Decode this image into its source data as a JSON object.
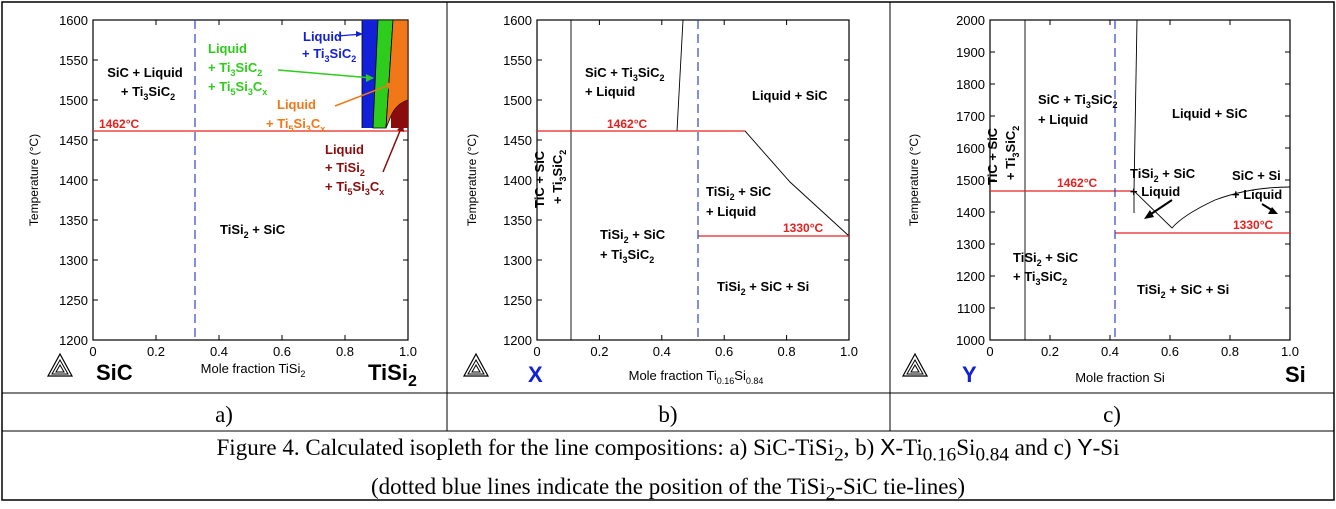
{
  "colors": {
    "red": "#e8201e",
    "blue": "#1220d8",
    "green": "#2ecc1c",
    "orange": "#f07818",
    "darkred": "#8a0c0c",
    "dash": "#3344cc"
  },
  "chart_data": [
    {
      "type": "phase-diagram",
      "panel_label": "a)",
      "ylabel": "Temperature (°C)",
      "xlabel": "Mole fraction TiSi₂",
      "left_endmember": "SiC",
      "right_endmember": "TiSi₂",
      "xlim": [
        0,
        1
      ],
      "ylim": [
        1200,
        1600
      ],
      "xticks": [
        "0",
        "0.2",
        "0.4",
        "0.6",
        "0.8",
        "1.0"
      ],
      "yticks": [
        "1200",
        "1250",
        "1300",
        "1350",
        "1400",
        "1450",
        "1500",
        "1550",
        "1600"
      ],
      "isotherms": [
        {
          "T": 1462,
          "label": "1462°C"
        }
      ],
      "tie_line_x": 0.325,
      "regions": [
        {
          "label": "SiC + Liquid\n+ Ti₃SiC₂",
          "color": "#000000"
        },
        {
          "label": "TiSi₂ + SiC",
          "color": "#000000"
        },
        {
          "label": "Liquid\n+ Ti₃SiC₂",
          "color": "#1220d8"
        },
        {
          "label": "Liquid\n+ Ti₃SiC₂\n+ Ti₅Si₃Cₓ",
          "color": "#2ecc1c"
        },
        {
          "label": "Liquid\n+ Ti₅Si₃Cₓ",
          "color": "#f07818"
        },
        {
          "label": "Liquid\n+ TiSi₂\n+ Ti₅Si₃Cₓ",
          "color": "#8a0c0c"
        }
      ]
    },
    {
      "type": "phase-diagram",
      "panel_label": "b)",
      "ylabel": "Temperature (°C)",
      "xlabel": "Mole fraction Ti0.16Si0.84",
      "left_endmember": "X",
      "right_endmember": "",
      "xlim": [
        0,
        1
      ],
      "ylim": [
        1200,
        1600
      ],
      "xticks": [
        "0",
        "0.2",
        "0.4",
        "0.6",
        "0.8",
        "1.0"
      ],
      "yticks": [
        "1200",
        "1250",
        "1300",
        "1350",
        "1400",
        "1450",
        "1500",
        "1550",
        "1600"
      ],
      "isotherms": [
        {
          "T": 1462,
          "label": "1462°C"
        },
        {
          "T": 1330,
          "label": "1330°C"
        }
      ],
      "tie_line_x": 0.52,
      "regions": [
        {
          "label": "SiC + Ti₃SiC₂\n+ Liquid"
        },
        {
          "label": "Liquid + SiC"
        },
        {
          "label": "TiC + SiC\n+ Ti₃SiC₂"
        },
        {
          "label": "TiSi₂ + SiC\n+ Liquid"
        },
        {
          "label": "TiSi₂ + SiC\n+ Ti₃SiC₂"
        },
        {
          "label": "TiSi₂ + SiC + Si"
        }
      ]
    },
    {
      "type": "phase-diagram",
      "panel_label": "c)",
      "ylabel": "Temperature (°C)",
      "xlabel": "Mole fraction Si",
      "left_endmember": "Y",
      "right_endmember": "Si",
      "xlim": [
        0,
        1
      ],
      "ylim": [
        1000,
        2000
      ],
      "xticks": [
        "0",
        "0.2",
        "0.4",
        "0.6",
        "0.8",
        "1.0"
      ],
      "yticks": [
        "1000",
        "1100",
        "1200",
        "1300",
        "1400",
        "1500",
        "1600",
        "1700",
        "1800",
        "1900",
        "2000"
      ],
      "isotherms": [
        {
          "T": 1462,
          "label": "1462°C"
        },
        {
          "T": 1330,
          "label": "1330°C"
        }
      ],
      "tie_line_x": 0.39,
      "regions": [
        {
          "label": "SiC + Ti₃SiC₂\n+ Liquid"
        },
        {
          "label": "Liquid + SiC"
        },
        {
          "label": "TiC + SiC\n+ Ti₃SiC₂"
        },
        {
          "label": "TiSi₂ + SiC\n+ Liquid"
        },
        {
          "label": "SiC + Si\n+ Liquid"
        },
        {
          "label": "TiSi₂ + SiC\n+ Ti₃SiC₂"
        },
        {
          "label": "TiSi₂ + SiC + Si"
        }
      ]
    }
  ],
  "caption": {
    "line1_a": "Figure 4. Calculated isopleth for the line compositions: a) SiC-TiSi",
    "line1_sub2a": "2",
    "line1_b": ", b) ",
    "line1_X": "X",
    "line1_c": "-Ti",
    "line1_sub016": "0.16",
    "line1_d": "Si",
    "line1_sub084": "0.84",
    "line1_e": " and c) ",
    "line1_Y": "Y",
    "line1_f": "-Si",
    "line2_a": "(dotted blue lines indicate the position of the TiSi",
    "line2_sub2": "2",
    "line2_b": "-SiC tie-lines)"
  }
}
